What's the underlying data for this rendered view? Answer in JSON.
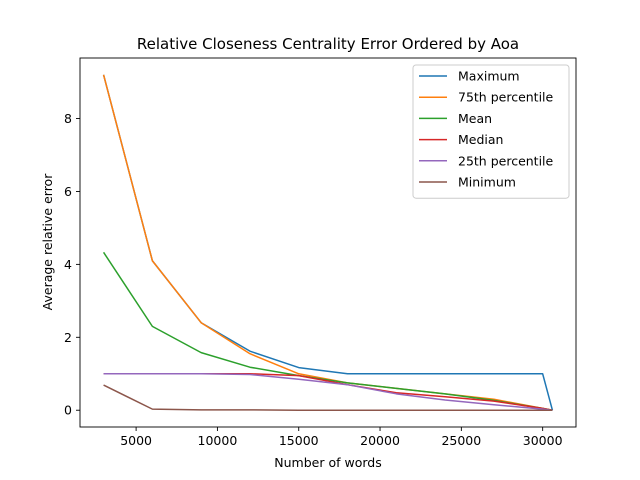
{
  "chart_data": {
    "type": "line",
    "title": "Relative Closeness Centrality Error Ordered by Aoa",
    "xlabel": "Number of words",
    "ylabel": "Average relative error",
    "xlim": [
      1550,
      32050
    ],
    "ylim": [
      -0.46,
      9.66
    ],
    "x_ticks": [
      5000,
      10000,
      15000,
      20000,
      25000,
      30000
    ],
    "y_ticks": [
      0,
      2,
      4,
      6,
      8
    ],
    "grid": false,
    "legend_position": "top-right",
    "series": [
      {
        "name": "Maximum",
        "color": "#1f77b4",
        "points": [
          [
            3000,
            9.2
          ],
          [
            6000,
            4.1
          ],
          [
            9000,
            2.4
          ],
          [
            12000,
            1.62
          ],
          [
            15000,
            1.17
          ],
          [
            18000,
            1.0
          ],
          [
            21000,
            1.0
          ],
          [
            24000,
            1.0
          ],
          [
            27000,
            1.0
          ],
          [
            30000,
            1.0
          ],
          [
            30600,
            0.0
          ]
        ]
      },
      {
        "name": "75th percentile",
        "color": "#ff7f0e",
        "points": [
          [
            3000,
            9.2
          ],
          [
            6000,
            4.1
          ],
          [
            9000,
            2.4
          ],
          [
            12000,
            1.55
          ],
          [
            15000,
            1.0
          ],
          [
            18000,
            0.75
          ],
          [
            21000,
            0.6
          ],
          [
            24000,
            0.45
          ],
          [
            27000,
            0.3
          ],
          [
            30000,
            0.05
          ],
          [
            30600,
            0.0
          ]
        ]
      },
      {
        "name": "Mean",
        "color": "#2ca02c",
        "points": [
          [
            3000,
            4.33
          ],
          [
            6000,
            2.3
          ],
          [
            9000,
            1.58
          ],
          [
            12000,
            1.18
          ],
          [
            15000,
            0.95
          ],
          [
            18000,
            0.75
          ],
          [
            21000,
            0.6
          ],
          [
            24000,
            0.45
          ],
          [
            27000,
            0.27
          ],
          [
            30000,
            0.05
          ],
          [
            30600,
            0.0
          ]
        ]
      },
      {
        "name": "Median",
        "color": "#d62728",
        "points": [
          [
            3000,
            1.0
          ],
          [
            6000,
            1.0
          ],
          [
            9000,
            1.0
          ],
          [
            12000,
            1.0
          ],
          [
            15000,
            0.95
          ],
          [
            18000,
            0.7
          ],
          [
            21000,
            0.48
          ],
          [
            24000,
            0.37
          ],
          [
            27000,
            0.25
          ],
          [
            30000,
            0.05
          ],
          [
            30600,
            0.0
          ]
        ]
      },
      {
        "name": "25th percentile",
        "color": "#9467bd",
        "points": [
          [
            3000,
            1.0
          ],
          [
            6000,
            1.0
          ],
          [
            9000,
            1.0
          ],
          [
            12000,
            0.98
          ],
          [
            15000,
            0.85
          ],
          [
            18000,
            0.7
          ],
          [
            21000,
            0.45
          ],
          [
            24000,
            0.28
          ],
          [
            27000,
            0.15
          ],
          [
            30000,
            0.03
          ],
          [
            30600,
            0.0
          ]
        ]
      },
      {
        "name": "Minimum",
        "color": "#8c564b",
        "points": [
          [
            3000,
            0.69
          ],
          [
            6000,
            0.03
          ],
          [
            9000,
            0.01
          ],
          [
            12000,
            0.01
          ],
          [
            15000,
            0.0
          ],
          [
            18000,
            0.0
          ],
          [
            21000,
            0.0
          ],
          [
            24000,
            0.0
          ],
          [
            27000,
            0.0
          ],
          [
            30000,
            0.0
          ],
          [
            30600,
            0.0
          ]
        ]
      }
    ]
  }
}
